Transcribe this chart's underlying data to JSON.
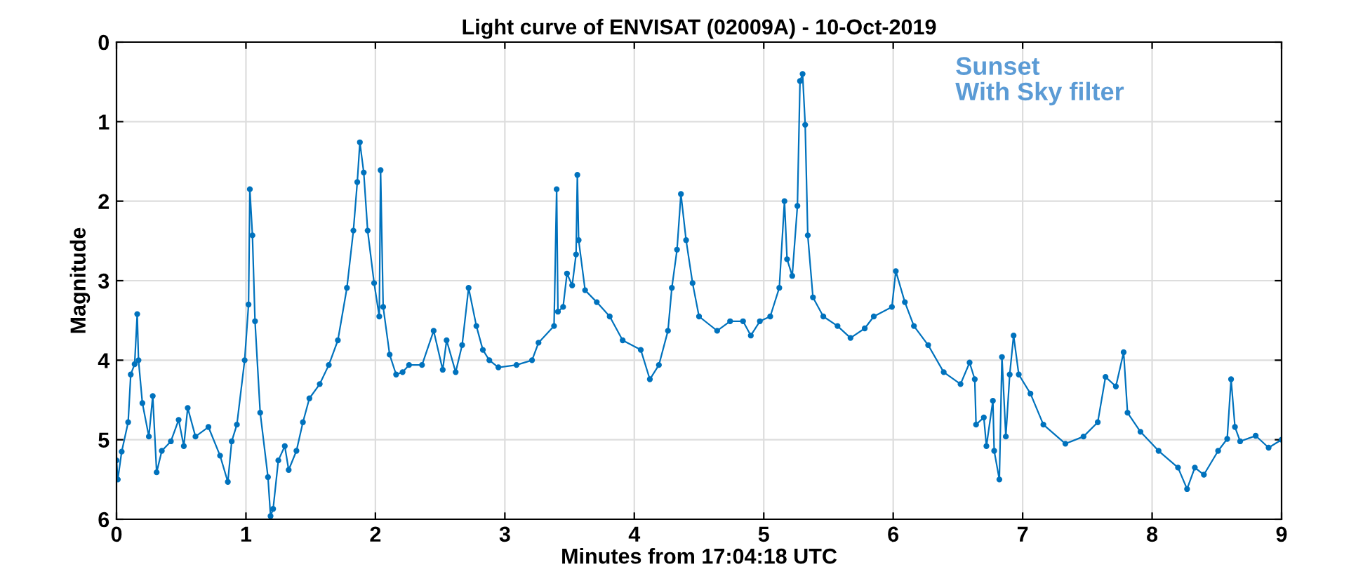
{
  "chart_data": {
    "type": "line",
    "title": "Light curve of ENVISAT (02009A) - 10-Oct-2019",
    "xlabel": "Minutes from 17:04:18 UTC",
    "ylabel": "Magnitude",
    "annotations": [
      "Sunset\nWith Sky filter"
    ],
    "xlim": [
      0,
      9
    ],
    "xticks": [
      0,
      1,
      2,
      3,
      4,
      5,
      6,
      7,
      8,
      9
    ],
    "ylim": [
      6,
      0
    ],
    "yticks": [
      0,
      1,
      2,
      3,
      4,
      5,
      6
    ],
    "grid": true,
    "marker": "circle",
    "line_style": "solid",
    "series": [
      {
        "color": "#0072bd",
        "x": [
          0,
          0.01,
          0.04,
          0.09,
          0.11,
          0.14,
          0.16,
          0.17,
          0.2,
          0.25,
          0.28,
          0.31,
          0.35,
          0.42,
          0.48,
          0.52,
          0.55,
          0.61,
          0.71,
          0.8,
          0.86,
          0.89,
          0.93,
          0.99,
          1.02,
          1.03,
          1.05,
          1.07,
          1.11,
          1.17,
          1.19,
          1.21,
          1.25,
          1.3,
          1.33,
          1.39,
          1.44,
          1.49,
          1.57,
          1.64,
          1.71,
          1.78,
          1.83,
          1.86,
          1.88,
          1.91,
          1.94,
          1.99,
          2.03,
          2.04,
          2.06,
          2.11,
          2.16,
          2.21,
          2.26,
          2.36,
          2.45,
          2.52,
          2.55,
          2.62,
          2.67,
          2.72,
          2.78,
          2.83,
          2.88,
          2.95,
          3.09,
          3.21,
          3.26,
          3.38,
          3.4,
          3.41,
          3.45,
          3.48,
          3.52,
          3.55,
          3.56,
          3.57,
          3.62,
          3.71,
          3.81,
          3.91,
          4.05,
          4.12,
          4.19,
          4.26,
          4.29,
          4.33,
          4.36,
          4.4,
          4.45,
          4.5,
          4.64,
          4.74,
          4.84,
          4.9,
          4.97,
          5.05,
          5.12,
          5.16,
          5.18,
          5.22,
          5.26,
          5.28,
          5.3,
          5.32,
          5.34,
          5.38,
          5.46,
          5.57,
          5.67,
          5.78,
          5.85,
          5.99,
          6.02,
          6.09,
          6.16,
          6.27,
          6.39,
          6.52,
          6.59,
          6.63,
          6.64,
          6.7,
          6.72,
          6.77,
          6.78,
          6.82,
          6.84,
          6.87,
          6.9,
          6.93,
          6.97,
          7.06,
          7.16,
          7.33,
          7.47,
          7.58,
          7.64,
          7.72,
          7.78,
          7.81,
          7.91,
          8.05,
          8.2,
          8.27,
          8.33,
          8.4,
          8.51,
          8.58,
          8.61,
          8.64,
          8.68,
          8.8,
          8.9,
          9.0
        ],
        "values": [
          5.26,
          5.5,
          5.15,
          4.78,
          4.18,
          4.05,
          3.42,
          4.0,
          4.54,
          4.96,
          4.45,
          5.41,
          5.14,
          5.02,
          4.75,
          5.08,
          4.6,
          4.96,
          4.84,
          5.2,
          5.53,
          5.02,
          4.81,
          4.0,
          3.3,
          1.85,
          2.43,
          3.51,
          4.66,
          5.47,
          5.96,
          5.87,
          5.26,
          5.08,
          5.38,
          5.14,
          4.78,
          4.48,
          4.3,
          4.06,
          3.75,
          3.09,
          2.37,
          1.76,
          1.26,
          1.64,
          2.37,
          3.03,
          3.45,
          1.61,
          3.33,
          3.93,
          4.18,
          4.15,
          4.06,
          4.06,
          3.63,
          4.12,
          3.75,
          4.15,
          3.81,
          3.09,
          3.57,
          3.87,
          4.0,
          4.09,
          4.06,
          4.0,
          3.78,
          3.57,
          1.85,
          3.39,
          3.33,
          2.91,
          3.06,
          2.67,
          1.67,
          2.49,
          3.12,
          3.27,
          3.45,
          3.75,
          3.87,
          4.24,
          4.06,
          3.63,
          3.09,
          2.61,
          1.91,
          2.49,
          3.03,
          3.45,
          3.63,
          3.51,
          3.51,
          3.69,
          3.51,
          3.45,
          3.09,
          2.0,
          2.73,
          2.94,
          2.06,
          0.49,
          0.4,
          1.04,
          2.43,
          3.21,
          3.45,
          3.57,
          3.72,
          3.6,
          3.45,
          3.33,
          2.88,
          3.27,
          3.57,
          3.81,
          4.15,
          4.3,
          4.03,
          4.24,
          4.81,
          4.72,
          5.08,
          4.51,
          5.14,
          5.5,
          3.96,
          4.96,
          4.18,
          3.69,
          4.18,
          4.42,
          4.81,
          5.05,
          4.96,
          4.78,
          4.21,
          4.33,
          3.9,
          4.66,
          4.9,
          5.14,
          5.35,
          5.62,
          5.35,
          5.44,
          5.14,
          4.99,
          4.24,
          4.84,
          5.02,
          4.95,
          5.1,
          5.0
        ]
      }
    ]
  }
}
